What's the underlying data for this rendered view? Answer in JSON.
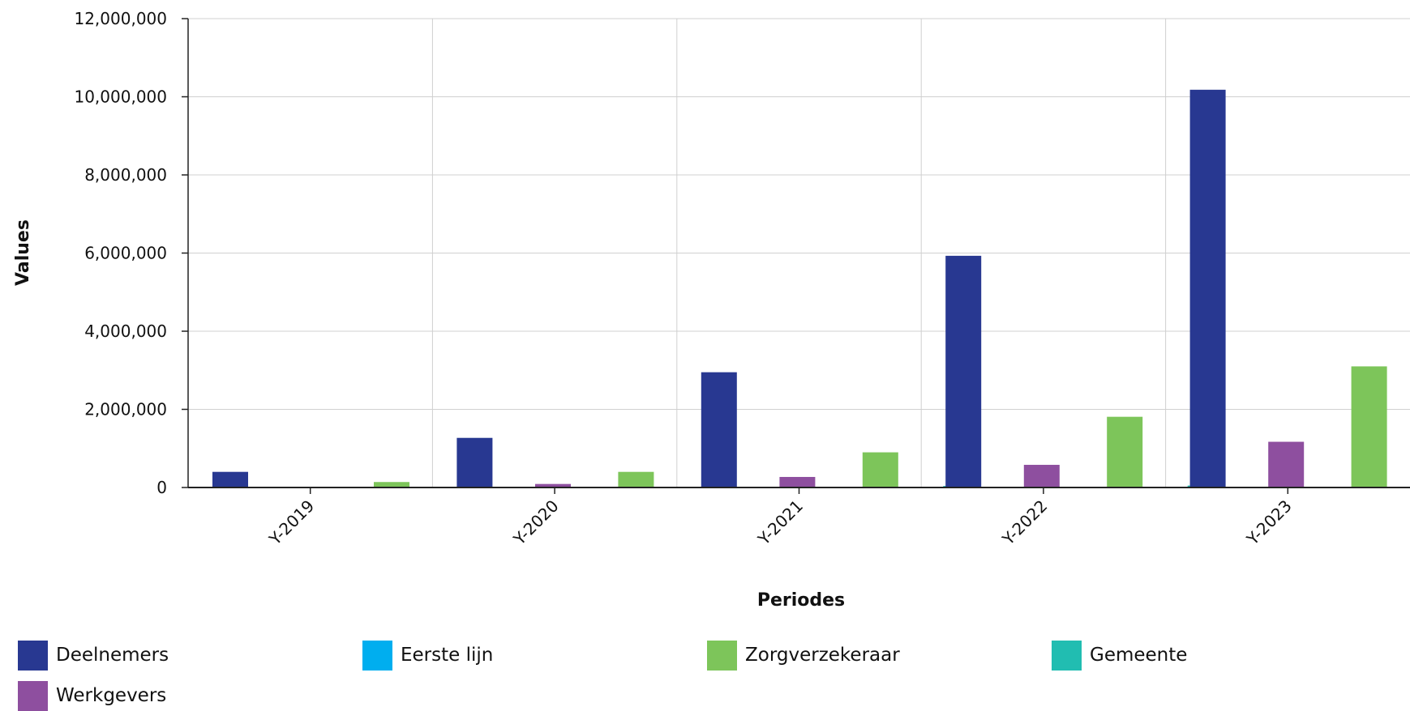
{
  "chart_data": {
    "type": "bar",
    "categories": [
      "Y-2019",
      "Y-2020",
      "Y-2021",
      "Y-2022",
      "Y-2023"
    ],
    "series": [
      {
        "name": "Deelnemers",
        "color": "#283891",
        "values": [
          400000,
          1270000,
          2950000,
          5930000,
          10180000
        ]
      },
      {
        "name": "Eerste lijn",
        "color": "#00AEEF",
        "values": [
          0,
          0,
          0,
          0,
          0
        ]
      },
      {
        "name": "Zorgverzekeraar",
        "color": "#7DC55A",
        "values": [
          140000,
          400000,
          900000,
          1810000,
          3100000
        ]
      },
      {
        "name": "Gemeente",
        "color": "#21BDB1",
        "values": [
          0,
          0,
          40000,
          50000,
          80000
        ]
      },
      {
        "name": "Werkgevers",
        "color": "#8E4F9F",
        "values": [
          90000,
          270000,
          580000,
          1170000,
          2030000
        ]
      }
    ],
    "xlabel": "Periodes",
    "ylabel": "Values",
    "ylim": [
      0,
      12000000
    ],
    "yticks": [
      "0",
      "2,000,000",
      "4,000,000",
      "6,000,000",
      "8,000,000",
      "10,000,000",
      "12,000,000"
    ],
    "grid": true,
    "legend_position": "bottom"
  }
}
